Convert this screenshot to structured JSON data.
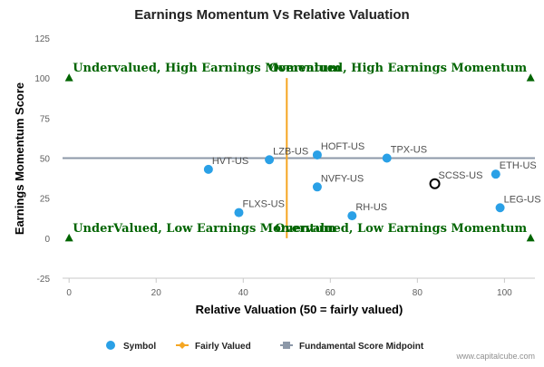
{
  "chart_data": {
    "type": "scatter",
    "title": "Earnings Momentum Vs Relative Valuation",
    "xlabel": "Relative Valuation (50 = fairly valued)",
    "ylabel": "Earnings Momentum Score",
    "xlim": [
      -1.5,
      107
    ],
    "ylim": [
      -25,
      125
    ],
    "x_ticks": [
      "0",
      "20",
      "40",
      "60",
      "80",
      "100"
    ],
    "y_ticks": [
      "-25",
      "0",
      "25",
      "50",
      "75",
      "100",
      "125"
    ],
    "grid": false,
    "legend_position": "bottom",
    "points": [
      {
        "label": "HVT-US",
        "x": 32,
        "y": 43
      },
      {
        "label": "LZB-US",
        "x": 46,
        "y": 49
      },
      {
        "label": "HOFT-US",
        "x": 57,
        "y": 52
      },
      {
        "label": "TPX-US",
        "x": 73,
        "y": 50
      },
      {
        "label": "NVFY-US",
        "x": 57,
        "y": 32
      },
      {
        "label": "FLXS-US",
        "x": 39,
        "y": 16
      },
      {
        "label": "RH-US",
        "x": 65,
        "y": 14
      },
      {
        "label": "ETH-US",
        "x": 98,
        "y": 40
      },
      {
        "label": "LEG-US",
        "x": 99,
        "y": 19
      }
    ],
    "highlight": {
      "label": "SCSS-US",
      "x": 84,
      "y": 34
    },
    "fairly_valued_x": 50,
    "midpoint_y": 50,
    "quadrant_labels": [
      {
        "text": "Undervalued, High Earnings Momentum",
        "x": 0,
        "y": 100
      },
      {
        "text": "Overvalued, High Earnings Momentum",
        "x": 106,
        "y": 100
      },
      {
        "text": "UnderValued, Low Earnings Momentum",
        "x": 0,
        "y": 0
      },
      {
        "text": "Overvalued, Low Earnings Momentum",
        "x": 106,
        "y": 0
      }
    ],
    "legend": [
      {
        "label": "Symbol",
        "kind": "dot"
      },
      {
        "label": "Fairly Valued",
        "kind": "diamond-line"
      },
      {
        "label": "Fundamental Score Midpoint",
        "kind": "square-line"
      }
    ],
    "colors": {
      "symbol": "#2aa0e6",
      "fairly_valued": "#f5a623",
      "midpoint": "#8c98a8",
      "quadrant": "#006400"
    }
  },
  "credit": "www.capitalcube.com"
}
